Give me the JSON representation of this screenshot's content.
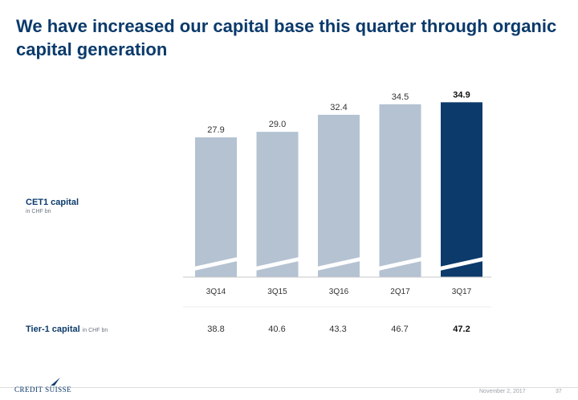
{
  "title": "We have increased our capital base this quarter through organic capital generation",
  "cet1_label": {
    "main": "CET1 capital",
    "unit": "in CHF bn"
  },
  "tier1_label": {
    "main": "Tier-1 capital",
    "unit": "in CHF bn"
  },
  "chart_data": {
    "type": "bar",
    "categories": [
      "3Q14",
      "3Q15",
      "3Q16",
      "2Q17",
      "3Q17"
    ],
    "series": [
      {
        "name": "CET1 capital",
        "values": [
          27.9,
          29.0,
          32.4,
          34.5,
          34.9
        ]
      }
    ],
    "highlight_index": 4,
    "ylim": [
      0,
      38
    ],
    "axis_break": true,
    "grid": false,
    "colors": {
      "bar": "#b4c2d2",
      "highlight": "#0b3a6b"
    }
  },
  "tier1_values": [
    "38.8",
    "40.6",
    "43.3",
    "46.7",
    "47.2"
  ],
  "footer": {
    "logo": "CREDIT SUISSE",
    "date": "November 2, 2017",
    "page": "37"
  }
}
